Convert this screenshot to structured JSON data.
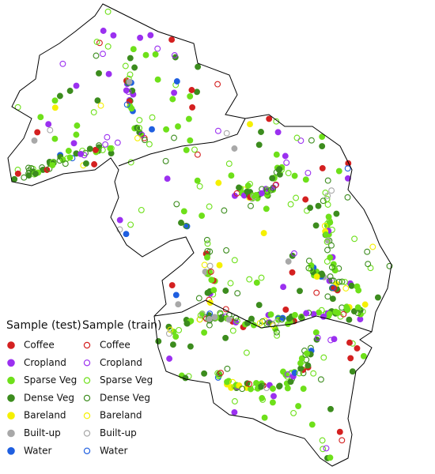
{
  "legend": {
    "columns": [
      {
        "title": "Sample (test)",
        "style": "filled",
        "items": [
          {
            "label": "Coffee",
            "color": "#d42020"
          },
          {
            "label": "Cropland",
            "color": "#9b30f0"
          },
          {
            "label": "Sparse Veg",
            "color": "#6ee01a"
          },
          {
            "label": "Dense Veg",
            "color": "#3c8c1e"
          },
          {
            "label": "Bareland",
            "color": "#f5f000"
          },
          {
            "label": "Built-up",
            "color": "#a8a8a8"
          },
          {
            "label": "Water",
            "color": "#1f5fe0"
          }
        ]
      },
      {
        "title": "Sample (train)",
        "style": "hollow",
        "items": [
          {
            "label": "Coffee",
            "color": "#d42020"
          },
          {
            "label": "Cropland",
            "color": "#9b30f0"
          },
          {
            "label": "Sparse Veg",
            "color": "#6ee01a"
          },
          {
            "label": "Dense Veg",
            "color": "#3c8c1e"
          },
          {
            "label": "Bareland",
            "color": "#f5f000"
          },
          {
            "label": "Built-up",
            "color": "#a8a8a8"
          },
          {
            "label": "Water",
            "color": "#1f5fe0"
          }
        ]
      }
    ]
  }
}
